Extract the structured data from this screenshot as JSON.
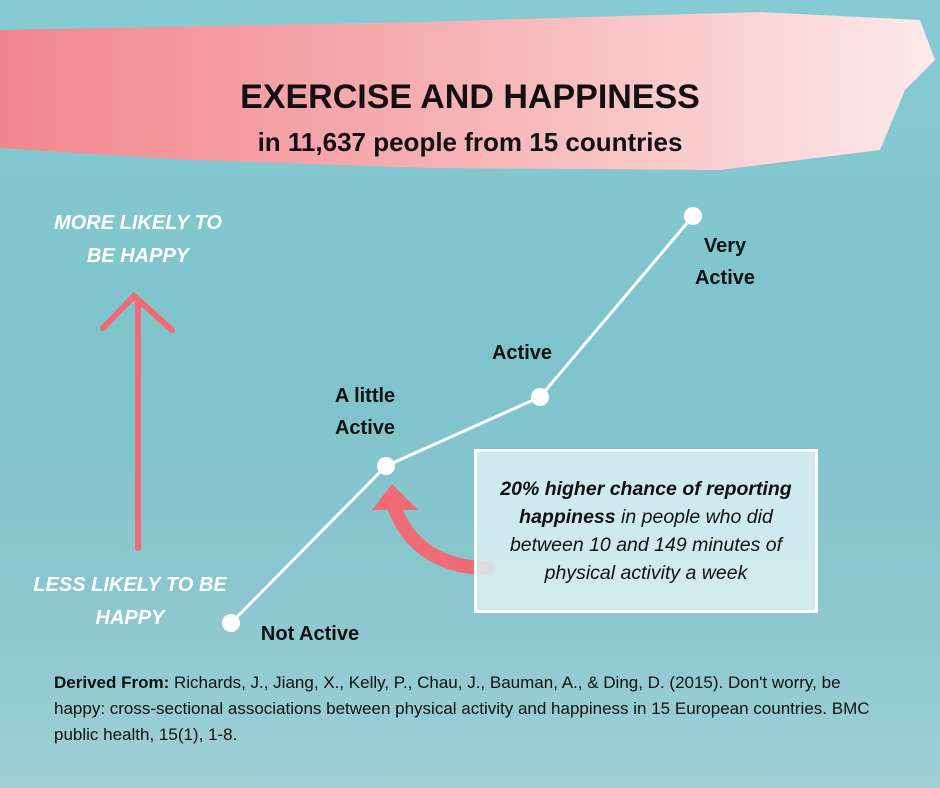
{
  "header": {
    "title": "EXERCISE AND HAPPINESS",
    "subtitle": "in 11,637 people from 15 countries"
  },
  "axis": {
    "top": "MORE LIKELY TO BE HAPPY",
    "bottom": "LESS LIKELY TO BE HAPPY"
  },
  "levels": [
    "Not Active",
    "A little Active",
    "Active",
    "Very Active"
  ],
  "callout": {
    "emphasis": "20% higher chance of reporting happiness",
    "text": "in people who did between 10 and 149 minutes of physical activity a week"
  },
  "citation": {
    "label": "Derived From:",
    "text": "Richards, J., Jiang, X., Kelly, P., Chau, J., Bauman, A., & Ding, D. (2015). Don't worry, be happy: cross-sectional associations between physical activity and happiness in 15 European countries. BMC public health, 15(1), 1-8."
  }
}
